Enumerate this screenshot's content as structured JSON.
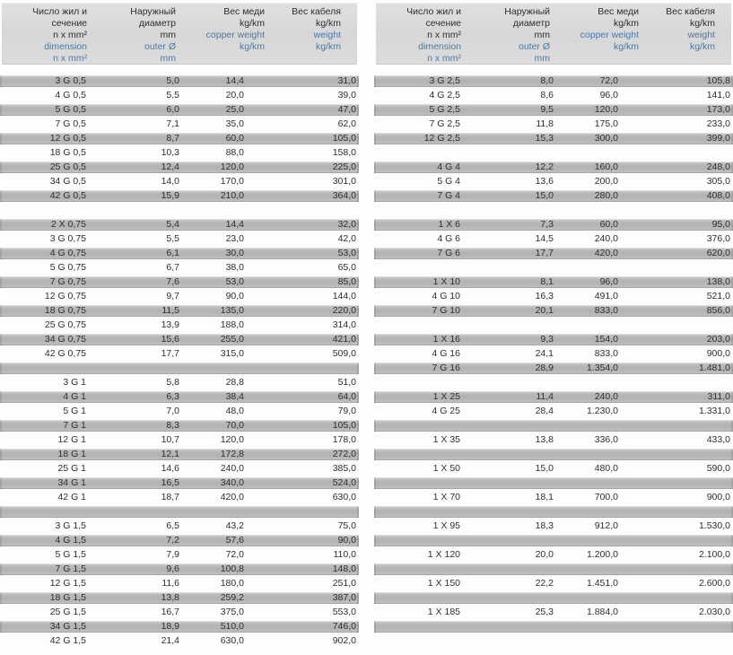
{
  "colors": {
    "header_bg": "#d9d9d9",
    "row_shaded": "#b7b7b7",
    "blue_text": "#4a7aa8",
    "text": "#2e2e2e",
    "page_bg": "#ffffff"
  },
  "header": {
    "columns": [
      {
        "black": [
          "Число жил и",
          "сечение",
          "n x mm²"
        ],
        "blue": [
          "dimension",
          "n x mm²"
        ]
      },
      {
        "black": [
          "Наружный",
          "диаметр",
          "mm"
        ],
        "blue": [
          "outer Ø",
          "mm"
        ]
      },
      {
        "black": [
          "Вес меди",
          "kg/km"
        ],
        "blue": [
          "copper weight",
          "kg/km"
        ]
      },
      {
        "black": [
          "Вес кабеля",
          "kg/km"
        ],
        "blue": [
          "weight",
          "kg/km"
        ]
      }
    ]
  },
  "left_table": {
    "rows": [
      {
        "dimension": "3 G 0,5",
        "outer": "5,0",
        "copper": "14,4",
        "weight": "31,0"
      },
      {
        "dimension": "4 G 0,5",
        "outer": "5,5",
        "copper": "20,0",
        "weight": "39,0"
      },
      {
        "dimension": "5 G 0,5",
        "outer": "6,0",
        "copper": "25,0",
        "weight": "47,0"
      },
      {
        "dimension": "7 G 0,5",
        "outer": "7,1",
        "copper": "35,0",
        "weight": "62,0"
      },
      {
        "dimension": "12 G 0,5",
        "outer": "8,7",
        "copper": "60,0",
        "weight": "105,0"
      },
      {
        "dimension": "18 G 0,5",
        "outer": "10,3",
        "copper": "88,0",
        "weight": "158,0"
      },
      {
        "dimension": "25 G 0,5",
        "outer": "12,4",
        "copper": "120,0",
        "weight": "225,0"
      },
      {
        "dimension": "34 G 0,5",
        "outer": "14,0",
        "copper": "170,0",
        "weight": "301,0"
      },
      {
        "dimension": "42 G 0,5",
        "outer": "15,9",
        "copper": "210,0",
        "weight": "364,0"
      },
      {
        "blank": true
      },
      {
        "dimension": "2 X 0,75",
        "outer": "5,4",
        "copper": "14,4",
        "weight": "32,0"
      },
      {
        "dimension": "3 G 0,75",
        "outer": "5,5",
        "copper": "23,0",
        "weight": "42,0"
      },
      {
        "dimension": "4 G 0,75",
        "outer": "6,1",
        "copper": "30,0",
        "weight": "53,0"
      },
      {
        "dimension": "5 G 0,75",
        "outer": "6,7",
        "copper": "38,0",
        "weight": "65,0"
      },
      {
        "dimension": "7 G 0,75",
        "outer": "7,6",
        "copper": "53,0",
        "weight": "85,0"
      },
      {
        "dimension": "12 G 0,75",
        "outer": "9,7",
        "copper": "90,0",
        "weight": "144,0"
      },
      {
        "dimension": "18 G 0,75",
        "outer": "11,5",
        "copper": "135,0",
        "weight": "220,0"
      },
      {
        "dimension": "25 G 0,75",
        "outer": "13,9",
        "copper": "188,0",
        "weight": "314,0"
      },
      {
        "dimension": "34 G 0,75",
        "outer": "15,6",
        "copper": "255,0",
        "weight": "421,0"
      },
      {
        "dimension": "42 G 0,75",
        "outer": "17,7",
        "copper": "315,0",
        "weight": "509,0"
      },
      {
        "blank": true
      },
      {
        "dimension": "3 G 1",
        "outer": "5,8",
        "copper": "28,8",
        "weight": "51,0"
      },
      {
        "dimension": "4 G 1",
        "outer": "6,3",
        "copper": "38,4",
        "weight": "64,0"
      },
      {
        "dimension": "5 G 1",
        "outer": "7,0",
        "copper": "48,0",
        "weight": "79,0"
      },
      {
        "dimension": "7 G 1",
        "outer": "8,3",
        "copper": "70,0",
        "weight": "105,0"
      },
      {
        "dimension": "12 G 1",
        "outer": "10,7",
        "copper": "120,0",
        "weight": "178,0"
      },
      {
        "dimension": "18 G 1",
        "outer": "12,1",
        "copper": "172,8",
        "weight": "272,0"
      },
      {
        "dimension": "25 G 1",
        "outer": "14,6",
        "copper": "240,0",
        "weight": "385,0"
      },
      {
        "dimension": "34 G 1",
        "outer": "16,5",
        "copper": "340,0",
        "weight": "524,0"
      },
      {
        "dimension": "42 G 1",
        "outer": "18,7",
        "copper": "420,0",
        "weight": "630,0"
      },
      {
        "blank": true
      },
      {
        "dimension": "3 G 1,5",
        "outer": "6,5",
        "copper": "43,2",
        "weight": "75,0"
      },
      {
        "dimension": "4 G 1,5",
        "outer": "7,2",
        "copper": "57,6",
        "weight": "90,0"
      },
      {
        "dimension": "5 G 1,5",
        "outer": "7,9",
        "copper": "72,0",
        "weight": "110,0"
      },
      {
        "dimension": "7 G 1,5",
        "outer": "9,6",
        "copper": "100,8",
        "weight": "148,0"
      },
      {
        "dimension": "12 G 1,5",
        "outer": "11,6",
        "copper": "180,0",
        "weight": "251,0"
      },
      {
        "dimension": "18 G 1,5",
        "outer": "13,8",
        "copper": "259,2",
        "weight": "387,0"
      },
      {
        "dimension": "25 G 1,5",
        "outer": "16,7",
        "copper": "375,0",
        "weight": "553,0"
      },
      {
        "dimension": "34 G 1,5",
        "outer": "18,9",
        "copper": "510,0",
        "weight": "746,0"
      },
      {
        "dimension": "42 G 1,5",
        "outer": "21,4",
        "copper": "630,0",
        "weight": "902,0"
      }
    ]
  },
  "right_table": {
    "rows": [
      {
        "dimension": "3 G 2,5",
        "outer": "8,0",
        "copper": "72,0",
        "weight": "105,8"
      },
      {
        "dimension": "4 G 2,5",
        "outer": "8,6",
        "copper": "96,0",
        "weight": "141,0"
      },
      {
        "dimension": "5 G 2,5",
        "outer": "9,5",
        "copper": "120,0",
        "weight": "173,0"
      },
      {
        "dimension": "7 G 2,5",
        "outer": "11,8",
        "copper": "175,0",
        "weight": "233,0"
      },
      {
        "dimension": "12 G 2,5",
        "outer": "15,3",
        "copper": "300,0",
        "weight": "399,0"
      },
      {
        "blank": true
      },
      {
        "dimension": "4 G 4",
        "outer": "12,2",
        "copper": "160,0",
        "weight": "248,0"
      },
      {
        "dimension": "5 G 4",
        "outer": "13,6",
        "copper": "200,0",
        "weight": "305,0"
      },
      {
        "dimension": "7 G 4",
        "outer": "15,0",
        "copper": "280,0",
        "weight": "408,0"
      },
      {
        "blank": true
      },
      {
        "dimension": "1 X 6",
        "outer": "7,3",
        "copper": "60,0",
        "weight": "95,0"
      },
      {
        "dimension": "4 G 6",
        "outer": "14,5",
        "copper": "240,0",
        "weight": "376,0"
      },
      {
        "dimension": "7 G 6",
        "outer": "17,7",
        "copper": "420,0",
        "weight": "620,0"
      },
      {
        "blank": true
      },
      {
        "dimension": "1 X 10",
        "outer": "8,1",
        "copper": "96,0",
        "weight": "138,0"
      },
      {
        "dimension": "4 G 10",
        "outer": "16,3",
        "copper": "491,0",
        "weight": "521,0"
      },
      {
        "dimension": "7 G 10",
        "outer": "20,1",
        "copper": "833,0",
        "weight": "856,0"
      },
      {
        "blank": true
      },
      {
        "dimension": "1 X 16",
        "outer": "9,3",
        "copper": "154,0",
        "weight": "203,0"
      },
      {
        "dimension": "4 G 16",
        "outer": "24,1",
        "copper": "833,0",
        "weight": "900,0"
      },
      {
        "dimension": "7 G 16",
        "outer": "28,9",
        "copper": "1.354,0",
        "weight": "1.481,0"
      },
      {
        "blank": true
      },
      {
        "dimension": "1 X 25",
        "outer": "11,4",
        "copper": "240,0",
        "weight": "311,0"
      },
      {
        "dimension": "4 G 25",
        "outer": "28,4",
        "copper": "1.230,0",
        "weight": "1.331,0"
      },
      {
        "blank": true
      },
      {
        "dimension": "1 X 35",
        "outer": "13,8",
        "copper": "336,0",
        "weight": "433,0"
      },
      {
        "blank": true
      },
      {
        "dimension": "1 X 50",
        "outer": "15,0",
        "copper": "480,0",
        "weight": "590,0"
      },
      {
        "blank": true
      },
      {
        "dimension": "1 X 70",
        "outer": "18,1",
        "copper": "700,0",
        "weight": "900,0"
      },
      {
        "blank": true
      },
      {
        "dimension": "1 X 95",
        "outer": "18,3",
        "copper": "912,0",
        "weight": "1.530,0"
      },
      {
        "blank": true
      },
      {
        "dimension": "1 X 120",
        "outer": "20,0",
        "copper": "1.200,0",
        "weight": "2.100,0"
      },
      {
        "blank": true
      },
      {
        "dimension": "1 X 150",
        "outer": "22,2",
        "copper": "1.451,0",
        "weight": "2.600,0"
      },
      {
        "blank": true
      },
      {
        "dimension": "1 X 185",
        "outer": "25,3",
        "copper": "1.884,0",
        "weight": "2.030,0"
      },
      {
        "blank": true
      }
    ]
  }
}
